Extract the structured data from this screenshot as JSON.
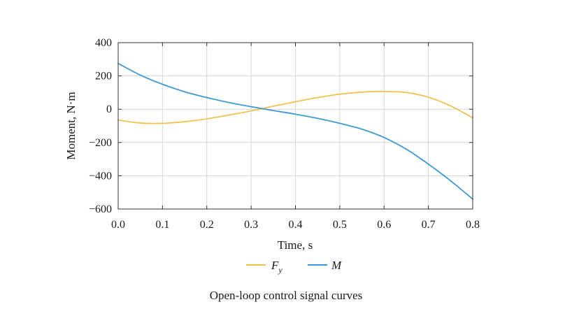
{
  "caption": "Open-loop control signal curves",
  "chart_data": {
    "type": "line",
    "title": "",
    "xlabel": "Time, s",
    "ylabel": "Moment, N·m",
    "xlim": [
      0.0,
      0.8
    ],
    "ylim": [
      -600,
      400
    ],
    "xticks": [
      0.0,
      0.1,
      0.2,
      0.3,
      0.4,
      0.5,
      0.6,
      0.7,
      0.8
    ],
    "xtick_labels": [
      "0.0",
      "0.1",
      "0.2",
      "0.3",
      "0.4",
      "0.5",
      "0.6",
      "0.7",
      "0.8"
    ],
    "yticks": [
      400,
      200,
      0,
      -200,
      -400,
      -600
    ],
    "ytick_labels": [
      "400",
      "200",
      "0",
      "−200",
      "−400",
      "−600"
    ],
    "grid": true,
    "legend_position": "bottom-center",
    "series": [
      {
        "name": "F",
        "name_subscript": "y",
        "color": "#F2C14E",
        "x": [
          0.0,
          0.05,
          0.1,
          0.15,
          0.2,
          0.25,
          0.3,
          0.35,
          0.4,
          0.45,
          0.5,
          0.55,
          0.6,
          0.65,
          0.7,
          0.75,
          0.8
        ],
        "y": [
          -65,
          -83,
          -85,
          -75,
          -58,
          -35,
          -10,
          18,
          45,
          70,
          90,
          103,
          107,
          100,
          72,
          20,
          -52
        ]
      },
      {
        "name": "M",
        "name_subscript": "",
        "color": "#3E9AD6",
        "x": [
          0.0,
          0.05,
          0.1,
          0.15,
          0.2,
          0.25,
          0.3,
          0.35,
          0.4,
          0.45,
          0.5,
          0.55,
          0.6,
          0.65,
          0.7,
          0.75,
          0.8
        ],
        "y": [
          275,
          205,
          150,
          105,
          70,
          40,
          15,
          -8,
          -30,
          -55,
          -85,
          -120,
          -170,
          -240,
          -330,
          -430,
          -540
        ]
      }
    ]
  }
}
